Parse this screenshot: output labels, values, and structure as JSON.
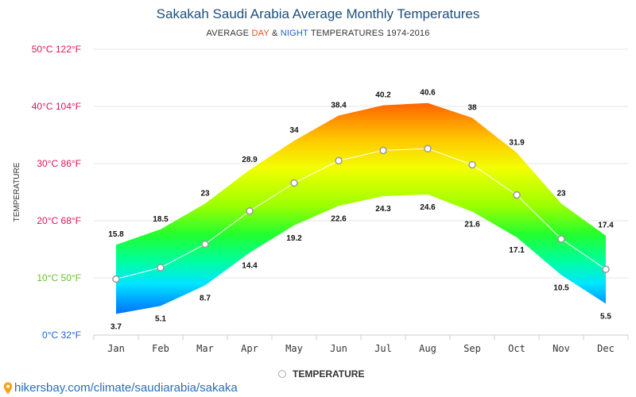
{
  "header": {
    "title": "Sakakah Saudi Arabia Average Monthly Temperatures",
    "subtitle_prefix": "AVERAGE ",
    "subtitle_day": "DAY",
    "subtitle_amp": " & ",
    "subtitle_night": "NIGHT",
    "subtitle_suffix": " TEMPERATURES 1974-2016"
  },
  "legend": {
    "label": "TEMPERATURE"
  },
  "source": {
    "text": "hikersbay.com/climate/saudiarabia/sakaka"
  },
  "colors": {
    "day": "#e8501e",
    "night": "#1f5fd6",
    "title": "#1f4e79",
    "tick_hot": "#e0155a",
    "tick_warm": "#6bbf2a",
    "tick_cold": "#1f5fd6"
  },
  "chart_data": {
    "type": "area",
    "title": "Sakakah Saudi Arabia Average Monthly Temperatures",
    "ylabel": "TEMPERATURE",
    "xlabel": "",
    "ylim": [
      0,
      50
    ],
    "grid": true,
    "legend_position": "bottom",
    "categories": [
      "Jan",
      "Feb",
      "Mar",
      "Apr",
      "May",
      "Jun",
      "Jul",
      "Aug",
      "Sep",
      "Oct",
      "Nov",
      "Dec"
    ],
    "y_ticks": [
      {
        "value": 0,
        "label": "0°C 32°F"
      },
      {
        "value": 10,
        "label": "10°C 50°F"
      },
      {
        "value": 20,
        "label": "20°C 68°F"
      },
      {
        "value": 30,
        "label": "30°C 86°F"
      },
      {
        "value": 40,
        "label": "40°C 104°F"
      },
      {
        "value": 50,
        "label": "50°C 122°F"
      }
    ],
    "series": [
      {
        "name": "DAY",
        "values": [
          15.8,
          18.5,
          23,
          28.9,
          34,
          38.4,
          40.2,
          40.6,
          38,
          31.9,
          23,
          17.4
        ]
      },
      {
        "name": "NIGHT",
        "values": [
          3.7,
          5.1,
          8.7,
          14.4,
          19.2,
          22.6,
          24.3,
          24.6,
          21.6,
          17.1,
          10.5,
          5.5
        ]
      },
      {
        "name": "TEMPERATURE",
        "values": [
          9.8,
          11.8,
          15.9,
          21.7,
          26.6,
          30.5,
          32.3,
          32.6,
          29.8,
          24.5,
          16.8,
          11.5
        ]
      }
    ]
  }
}
